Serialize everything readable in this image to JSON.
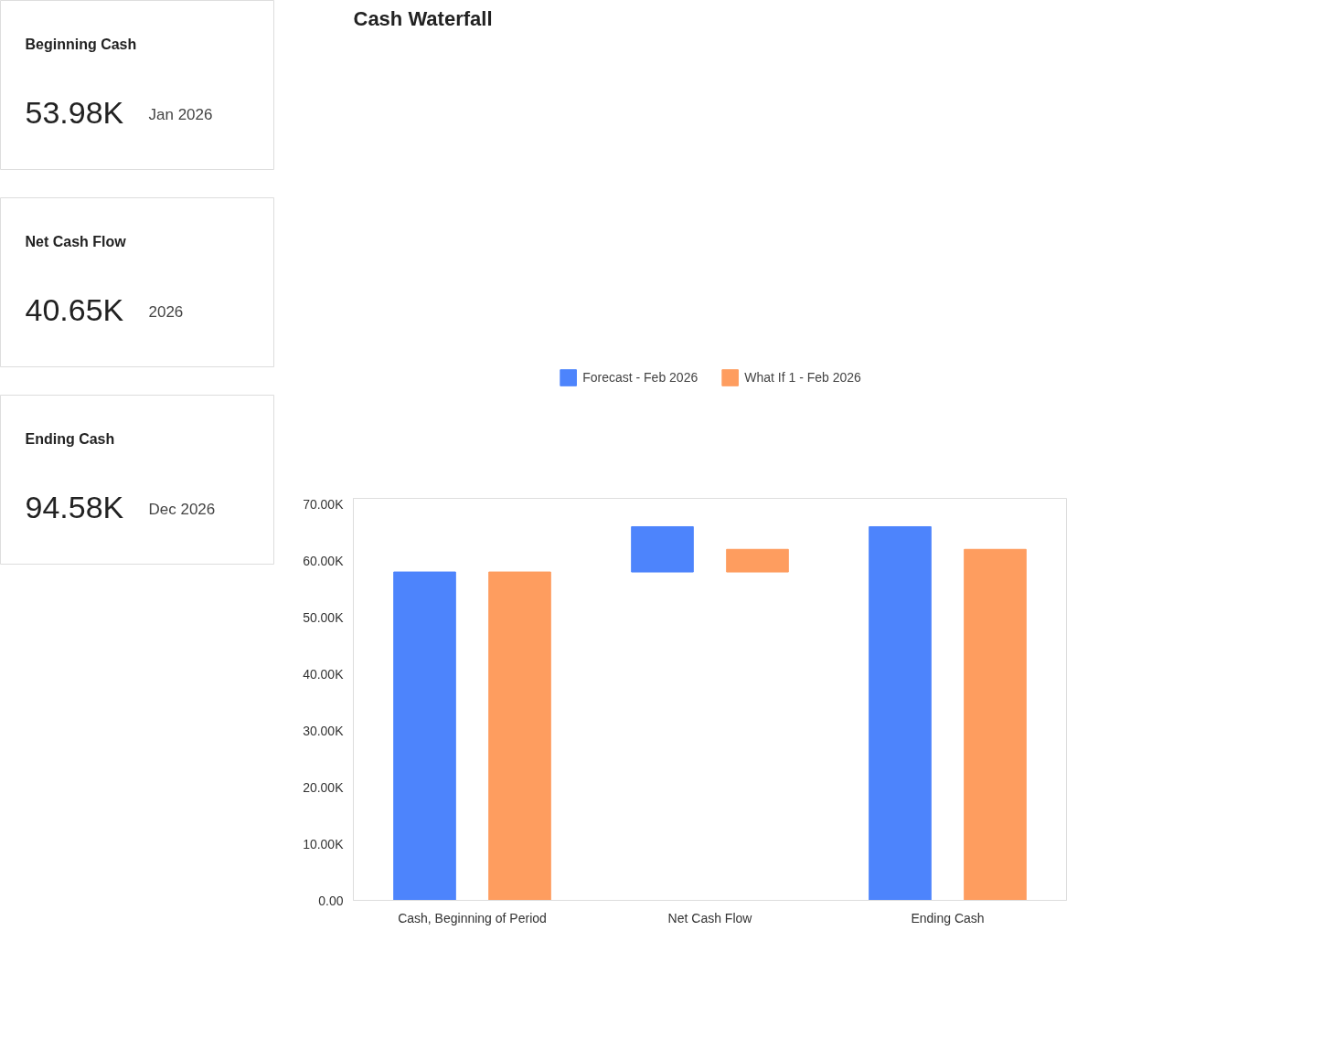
{
  "chart_data": [
    {
      "type": "other",
      "title": "Beginning Cash",
      "annotations": [
        "53.98K",
        "Jan 2026"
      ]
    },
    {
      "type": "other",
      "title": "Net Cash Flow",
      "annotations": [
        "40.65K",
        "2026"
      ]
    },
    {
      "type": "other",
      "title": "Ending Cash",
      "annotations": [
        "94.58K",
        "Dec 2026"
      ]
    },
    {
      "type": "bar",
      "title": "Cash Waterfall",
      "categories": [
        "Cash, Beginning of Period",
        "Net Cash Flow",
        "Ending Cash"
      ],
      "series": [
        {
          "name": "Forecast - Feb 2026",
          "color": "#4d84fc",
          "values": [
            58,
            8,
            66
          ],
          "base": [
            0,
            58,
            0
          ]
        },
        {
          "name": "What If 1 - Feb 2026",
          "color": "#fe9d5f",
          "values": [
            58,
            4,
            62
          ],
          "base": [
            0,
            58,
            0
          ]
        }
      ],
      "ylim": [
        0,
        71
      ],
      "yticks": [
        {
          "value": 0,
          "label": "0.00"
        },
        {
          "value": 10,
          "label": "10.00K"
        },
        {
          "value": 20,
          "label": "20.00K"
        },
        {
          "value": 30,
          "label": "30.00K"
        },
        {
          "value": 40,
          "label": "40.00K"
        },
        {
          "value": 50,
          "label": "50.00K"
        },
        {
          "value": 60,
          "label": "60.00K"
        },
        {
          "value": 70,
          "label": "70.00K"
        }
      ],
      "legend": "top",
      "grid": false
    }
  ]
}
